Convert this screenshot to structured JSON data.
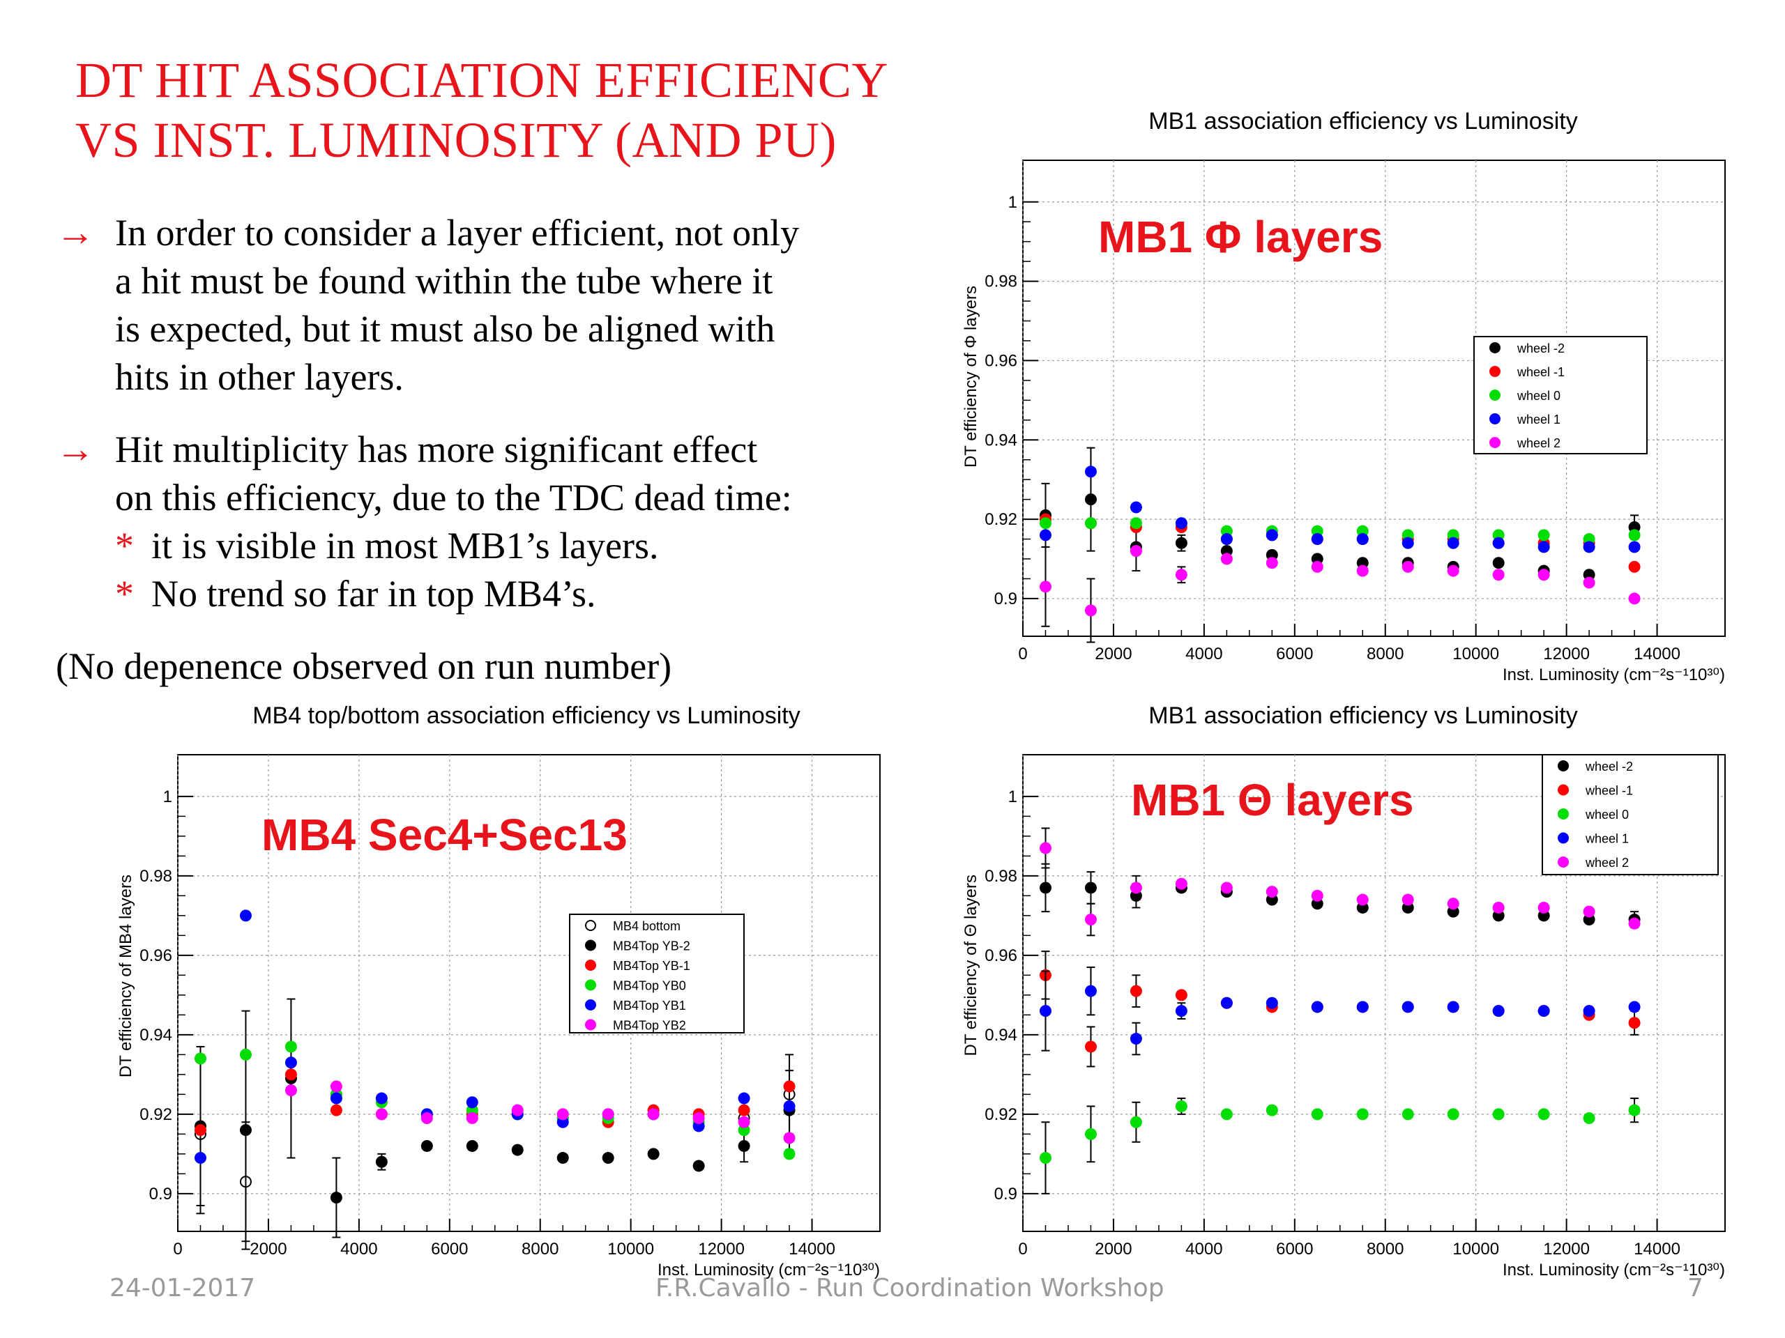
{
  "slide": {
    "title_lines": [
      "DT HIT ASSOCIATION EFFICIENCY",
      "VS INST. LUMINOSITY (AND PU)"
    ],
    "bullet_arrow": "→",
    "bullets": [
      {
        "lines": [
          "In order to consider a layer efficient, not only",
          "a hit must be found within the tube where it",
          "is expected, but it must also be aligned with",
          "hits in other layers."
        ]
      },
      {
        "lines": [
          "Hit multiplicity has more significant effect",
          "on this efficiency, due to the TDC dead time:"
        ]
      }
    ],
    "sub_marker": "*",
    "sub_bullets": [
      "it is visible in most MB1’s layers.",
      "No trend so far in top MB4’s."
    ],
    "note": "(No depenence observed on run number)",
    "footer": {
      "date": "24-01-2017",
      "center": "F.R.Cavallo - Run Coordination Workshop",
      "page": "7"
    }
  },
  "chart_data": [
    {
      "id": "mb1phi",
      "type": "scatter",
      "title": "MB1 association efficiency vs Luminosity",
      "ylabel": "DT efficiency of Φ layers",
      "xlabel": "Inst. Luminosity (cm⁻²s⁻¹10³⁰)",
      "overlay": "MB1 Φ layers",
      "xlim": [
        0,
        15500
      ],
      "ylim": [
        0.8905,
        1.0105
      ],
      "xticks": [
        "0",
        "2000",
        "4000",
        "6000",
        "8000",
        "10000",
        "12000",
        "14000"
      ],
      "yticks": [
        "0.9",
        "0.92",
        "0.94",
        "0.96",
        "0.98",
        "1"
      ],
      "grid": true,
      "legend_position": "middle-right",
      "x": [
        500,
        1500,
        2500,
        3500,
        4500,
        5500,
        6500,
        7500,
        8500,
        9500,
        10500,
        11500,
        12500,
        13500
      ],
      "series": [
        {
          "name": "wheel -2",
          "color": "#000000",
          "values": [
            0.921,
            0.925,
            0.913,
            0.914,
            0.912,
            0.911,
            0.91,
            0.909,
            0.909,
            0.908,
            0.909,
            0.907,
            0.906,
            0.918
          ],
          "errors": [
            0.008,
            0.013,
            0.006,
            0.002,
            0,
            0,
            0,
            0,
            0,
            0,
            0,
            0,
            0,
            0.003
          ]
        },
        {
          "name": "wheel -1",
          "color": "#ff0000",
          "values": [
            0.92,
            0.919,
            0.918,
            0.918,
            0.915,
            0.916,
            0.915,
            0.915,
            0.915,
            0.915,
            0.914,
            0.914,
            0.914,
            0.908
          ],
          "errors": [
            0,
            0,
            0,
            0,
            0,
            0,
            0,
            0,
            0,
            0,
            0,
            0,
            0,
            0
          ]
        },
        {
          "name": "wheel 0",
          "color": "#00dd00",
          "values": [
            0.919,
            0.919,
            0.919,
            0.919,
            0.917,
            0.917,
            0.917,
            0.917,
            0.916,
            0.916,
            0.916,
            0.916,
            0.915,
            0.916
          ],
          "errors": [
            0,
            0,
            0,
            0,
            0,
            0,
            0,
            0,
            0,
            0,
            0,
            0,
            0,
            0
          ]
        },
        {
          "name": "wheel 1",
          "color": "#0000ff",
          "values": [
            0.916,
            0.932,
            0.923,
            0.919,
            0.915,
            0.916,
            0.915,
            0.915,
            0.914,
            0.914,
            0.914,
            0.913,
            0.913,
            0.913
          ],
          "errors": [
            0,
            0,
            0,
            0,
            0,
            0,
            0,
            0,
            0,
            0,
            0,
            0,
            0,
            0
          ]
        },
        {
          "name": "wheel 2",
          "color": "#ff00ff",
          "values": [
            0.903,
            0.897,
            0.912,
            0.906,
            0.91,
            0.909,
            0.908,
            0.907,
            0.908,
            0.907,
            0.906,
            0.906,
            0.904,
            0.9
          ],
          "errors": [
            0.01,
            0.008,
            0,
            0.002,
            0,
            0,
            0,
            0,
            0,
            0,
            0,
            0,
            0,
            0
          ]
        }
      ]
    },
    {
      "id": "mb4",
      "type": "scatter",
      "title": "MB4 top/bottom association efficiency vs Luminosity",
      "ylabel": "DT efficiency of MB4 layers",
      "xlabel": "Inst. Luminosity (cm⁻²s⁻¹10³⁰)",
      "overlay": "MB4 Sec4+Sec13",
      "xlim": [
        0,
        15500
      ],
      "ylim": [
        0.8905,
        1.0105
      ],
      "xticks": [
        "0",
        "2000",
        "4000",
        "6000",
        "8000",
        "10000",
        "12000",
        "14000"
      ],
      "yticks": [
        "0.9",
        "0.92",
        "0.94",
        "0.96",
        "0.98",
        "1"
      ],
      "grid": true,
      "legend_position": "middle-right",
      "x": [
        500,
        1500,
        2500,
        3500,
        4500,
        5500,
        6500,
        7500,
        8500,
        9500,
        10500,
        11500,
        12500,
        13500
      ],
      "series": [
        {
          "name": "MB4 bottom",
          "color": "#000000",
          "open": true,
          "values": [
            0.915,
            0.903,
            null,
            null,
            null,
            null,
            null,
            null,
            null,
            null,
            null,
            null,
            0.919,
            0.925
          ],
          "errors": [
            0.02,
            0.015,
            0,
            0,
            0,
            0,
            0,
            0,
            0,
            0,
            0,
            0,
            0,
            0.01
          ]
        },
        {
          "name": "MB4Top YB-2",
          "color": "#000000",
          "values": [
            0.917,
            0.916,
            0.929,
            0.899,
            0.908,
            0.912,
            0.912,
            0.911,
            0.909,
            0.909,
            0.91,
            0.907,
            0.912,
            0.921
          ],
          "errors": [
            0.02,
            0.03,
            0.02,
            0.01,
            0.002,
            0,
            0,
            0,
            0,
            0,
            0,
            0,
            0.004,
            0.01
          ]
        },
        {
          "name": "MB4Top YB-1",
          "color": "#ff0000",
          "values": [
            0.916,
            null,
            0.93,
            0.921,
            0.92,
            0.92,
            0.92,
            0.92,
            0.919,
            0.918,
            0.921,
            0.92,
            0.921,
            0.927
          ],
          "errors": [
            0,
            0,
            0,
            0,
            0,
            0,
            0,
            0,
            0,
            0,
            0,
            0,
            0,
            0
          ]
        },
        {
          "name": "MB4Top YB0",
          "color": "#00dd00",
          "values": [
            0.934,
            0.935,
            0.937,
            0.925,
            0.923,
            0.92,
            0.921,
            0.92,
            0.919,
            0.919,
            0.92,
            0.918,
            0.916,
            0.91
          ],
          "errors": [
            0,
            0,
            0,
            0,
            0,
            0,
            0,
            0,
            0,
            0,
            0,
            0,
            0,
            0
          ]
        },
        {
          "name": "MB4Top YB1",
          "color": "#0000ff",
          "values": [
            0.909,
            0.97,
            0.933,
            0.924,
            0.924,
            0.92,
            0.923,
            0.92,
            0.918,
            0.92,
            0.92,
            0.917,
            0.924,
            0.922
          ],
          "errors": [
            0,
            0,
            0,
            0,
            0,
            0,
            0,
            0,
            0,
            0,
            0,
            0,
            0,
            0
          ]
        },
        {
          "name": "MB4Top YB2",
          "color": "#ff00ff",
          "values": [
            null,
            null,
            0.926,
            0.927,
            0.92,
            0.919,
            0.919,
            0.921,
            0.92,
            0.92,
            0.92,
            0.919,
            0.918,
            0.914
          ],
          "errors": [
            0,
            0,
            0,
            0,
            0,
            0,
            0,
            0,
            0,
            0,
            0,
            0,
            0,
            0
          ]
        }
      ]
    },
    {
      "id": "mb1theta",
      "type": "scatter",
      "title": "MB1 association efficiency vs Luminosity",
      "ylabel": "DT efficiency of Θ layers",
      "xlabel": "Inst. Luminosity (cm⁻²s⁻¹10³⁰)",
      "overlay": "MB1 Θ layers",
      "xlim": [
        0,
        15500
      ],
      "ylim": [
        0.8905,
        1.0105
      ],
      "xticks": [
        "0",
        "2000",
        "4000",
        "6000",
        "8000",
        "10000",
        "12000",
        "14000"
      ],
      "yticks": [
        "0.9",
        "0.92",
        "0.94",
        "0.96",
        "0.98",
        "1"
      ],
      "grid": true,
      "legend_position": "top-right",
      "x": [
        500,
        1500,
        2500,
        3500,
        4500,
        5500,
        6500,
        7500,
        8500,
        9500,
        10500,
        11500,
        12500,
        13500
      ],
      "series": [
        {
          "name": "wheel -2",
          "color": "#000000",
          "values": [
            0.977,
            0.977,
            0.975,
            0.977,
            0.976,
            0.974,
            0.973,
            0.972,
            0.972,
            0.971,
            0.97,
            0.97,
            0.969,
            0.969
          ],
          "errors": [
            0.006,
            0.004,
            0.003,
            0,
            0,
            0,
            0,
            0,
            0,
            0,
            0,
            0,
            0,
            0.002
          ]
        },
        {
          "name": "wheel -1",
          "color": "#ff0000",
          "values": [
            0.955,
            0.937,
            0.951,
            0.95,
            0.948,
            0.947,
            0.947,
            0.947,
            0.947,
            0.947,
            0.946,
            0.946,
            0.945,
            0.943
          ],
          "errors": [
            0.006,
            0.005,
            0.004,
            0,
            0,
            0,
            0,
            0,
            0,
            0,
            0,
            0,
            0,
            0.003
          ]
        },
        {
          "name": "wheel 0",
          "color": "#00dd00",
          "values": [
            0.909,
            0.915,
            0.918,
            0.922,
            0.92,
            0.921,
            0.92,
            0.92,
            0.92,
            0.92,
            0.92,
            0.92,
            0.919,
            0.921
          ],
          "errors": [
            0.009,
            0.007,
            0.005,
            0.002,
            0,
            0,
            0,
            0,
            0,
            0,
            0,
            0,
            0,
            0.003
          ]
        },
        {
          "name": "wheel 1",
          "color": "#0000ff",
          "values": [
            0.946,
            0.951,
            0.939,
            0.946,
            0.948,
            0.948,
            0.947,
            0.947,
            0.947,
            0.947,
            0.946,
            0.946,
            0.946,
            0.947
          ],
          "errors": [
            0.01,
            0.006,
            0.004,
            0.002,
            0,
            0,
            0,
            0,
            0,
            0,
            0,
            0,
            0,
            0
          ]
        },
        {
          "name": "wheel 2",
          "color": "#ff00ff",
          "values": [
            0.987,
            0.969,
            0.977,
            0.978,
            0.977,
            0.976,
            0.975,
            0.974,
            0.974,
            0.973,
            0.972,
            0.972,
            0.971,
            0.968
          ],
          "errors": [
            0.005,
            0.004,
            0.003,
            0,
            0,
            0,
            0,
            0,
            0,
            0,
            0,
            0,
            0,
            0
          ]
        }
      ]
    }
  ]
}
